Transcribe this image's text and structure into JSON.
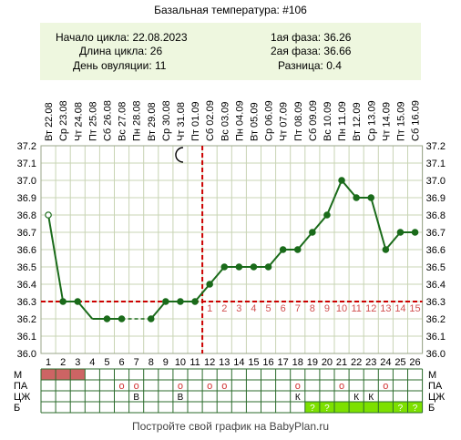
{
  "title": "Базальная температура: #106",
  "info": {
    "cycle_start": "Начало цикла: 22.08.2023",
    "cycle_length": "Длина цикла: 26",
    "ovulation_day": "День овуляции: 11",
    "phase1": "1ая фаза: 36.26",
    "phase2": "2ая фаза: 36.66",
    "difference": "Разница: 0.4"
  },
  "footer": "Постройте свой график на BabyPlan.ru",
  "colors": {
    "line": "#1a6b1a",
    "grid": "#c8d4b4",
    "coverline": "#cc0000",
    "ovulation_line": "#cc0000",
    "luteal_numbers": "#d05050",
    "menstruation": "#cd6464",
    "dry_day": "#7de000",
    "info_bg": "#eef7df"
  },
  "chart_data": {
    "type": "line",
    "days": [
      1,
      2,
      3,
      4,
      5,
      6,
      7,
      8,
      9,
      10,
      11,
      12,
      13,
      14,
      15,
      16,
      17,
      18,
      19,
      20,
      21,
      22,
      23,
      24,
      25,
      26
    ],
    "dates": [
      "Вт 22.08",
      "Ср 23.08",
      "Чт 24.08",
      "Пт 25.08",
      "Сб 26.08",
      "Вс 27.08",
      "Пн 28.08",
      "Вт 29.08",
      "Ср 30.08",
      "Чт 31.08",
      "Пт 01.09",
      "Сб 02.09",
      "Вс 03.09",
      "Пн 04.09",
      "Вт 05.09",
      "Ср 06.09",
      "Чт 07.09",
      "Пт 08.09",
      "Сб 09.09",
      "Вс 10.09",
      "Пн 11.09",
      "Вт 12.09",
      "Ср 13.09",
      "Чт 14.09",
      "Пт 15.09",
      "Сб 16.09"
    ],
    "temperatures": [
      36.8,
      36.3,
      36.3,
      null,
      36.2,
      36.2,
      null,
      36.2,
      36.3,
      36.3,
      36.3,
      36.4,
      36.5,
      36.5,
      36.5,
      36.5,
      36.6,
      36.6,
      36.7,
      36.8,
      37.0,
      36.9,
      36.9,
      36.6,
      36.7,
      36.7
    ],
    "plotted": [
      36.8,
      36.3,
      36.3,
      36.2,
      36.2,
      36.2,
      null,
      36.2,
      36.3,
      36.3,
      36.3,
      36.4,
      36.5,
      36.5,
      36.5,
      36.5,
      36.6,
      36.6,
      36.7,
      36.8,
      37.0,
      36.9,
      36.9,
      36.6,
      36.7,
      36.7
    ],
    "dashed_segments": [
      [
        6,
        8
      ]
    ],
    "hollow_points": [
      1
    ],
    "ylim": [
      36.0,
      37.2
    ],
    "ytick_step": 0.1,
    "coverline": 36.3,
    "ovulation_day": 11,
    "luteal_day_numbers": [
      "1",
      "2",
      "3",
      "4",
      "5",
      "6",
      "7",
      "8",
      "9",
      "10",
      "11",
      "12",
      "13",
      "14",
      "15"
    ],
    "moon_day": 10
  },
  "row_labels": [
    "М",
    "ПА",
    "ЦЖ",
    "Б"
  ],
  "rows": {
    "menstruation_days": [
      1,
      2,
      3
    ],
    "intercourse_days": [
      6,
      7,
      10,
      12,
      13,
      18,
      21,
      24
    ],
    "intercourse_mark": "о",
    "mucus": {
      "7": "В",
      "10": "В",
      "18": "К",
      "22": "К",
      "23": "К"
    },
    "dry_days": [
      19,
      20,
      21,
      22,
      23,
      24,
      25,
      26
    ],
    "dry_mark": "?",
    "dry_mark_days": [
      19,
      20,
      25,
      26
    ]
  }
}
